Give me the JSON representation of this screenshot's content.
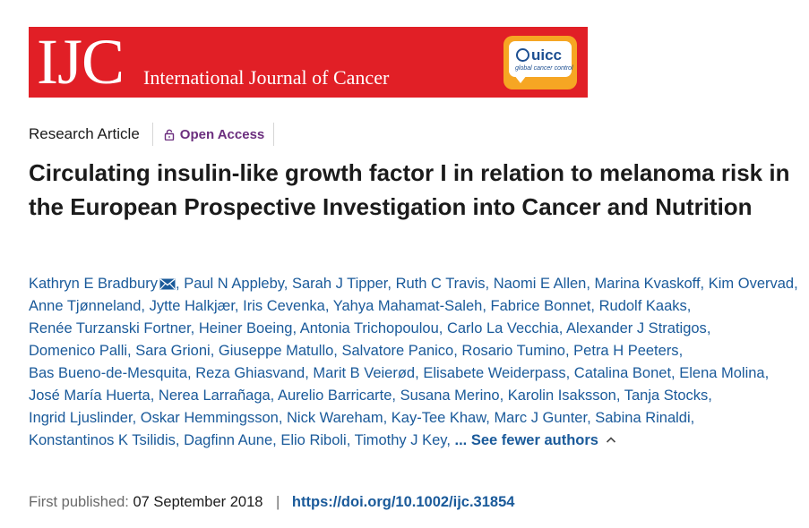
{
  "journal": {
    "abbr": "IJC",
    "name": "International Journal of Cancer",
    "partner": {
      "word": "uicc",
      "tagline": "global cancer control"
    }
  },
  "article": {
    "type": "Research Article",
    "access_label": "Open Access",
    "title": "Circulating insulin-like growth factor I in relation to melanoma risk in the European Prospective Investigation into Cancer and Nutrition"
  },
  "authors": [
    "Kathryn E Bradbury",
    "Paul N Appleby",
    "Sarah J Tipper",
    "Ruth C Travis",
    "Naomi E Allen",
    "Marina Kvaskoff",
    "Kim Overvad",
    "Anne Tjønneland",
    "Jytte Halkjær",
    "Iris Cevenka",
    "Yahya Mahamat-Saleh",
    "Fabrice Bonnet",
    "Rudolf Kaaks",
    "Renée Turzanski Fortner",
    "Heiner Boeing",
    "Antonia Trichopoulou",
    "Carlo La Vecchia",
    "Alexander J Stratigos",
    "Domenico Palli",
    "Sara Grioni",
    "Giuseppe Matullo",
    "Salvatore Panico",
    "Rosario Tumino",
    "Petra H Peeters",
    "Bas Bueno-de-Mesquita",
    "Reza Ghiasvand",
    "Marit B Veierød",
    "Elisabete Weiderpass",
    "Catalina Bonet",
    "Elena Molina",
    "José María Huerta",
    "Nerea Larrañaga",
    "Aurelio Barricarte",
    "Susana Merino",
    "Karolin Isaksson",
    "Tanja Stocks",
    "Ingrid Ljuslinder",
    "Oskar Hemmingsson",
    "Nick Wareham",
    "Kay-Tee Khaw",
    "Marc J Gunter",
    "Sabina Rinaldi",
    "Konstantinos K Tsilidis",
    "Dagfinn Aune",
    "Elio Riboli",
    "Timothy J Key"
  ],
  "authors_toggle_label": "... See fewer authors",
  "publication": {
    "label": "First published:",
    "date": "07 September 2018",
    "separator": "|",
    "doi": "https://doi.org/10.1002/ijc.31854"
  },
  "icons": {
    "lock": "lock-icon",
    "mail": "mail-icon",
    "chevron": "chevron-up-icon",
    "globe": "globe-icon"
  },
  "colors": {
    "banner": "#e11f26",
    "uicc_badge": "#f6a623",
    "link": "#1a5a9a",
    "open_access": "#6b2e7e"
  }
}
